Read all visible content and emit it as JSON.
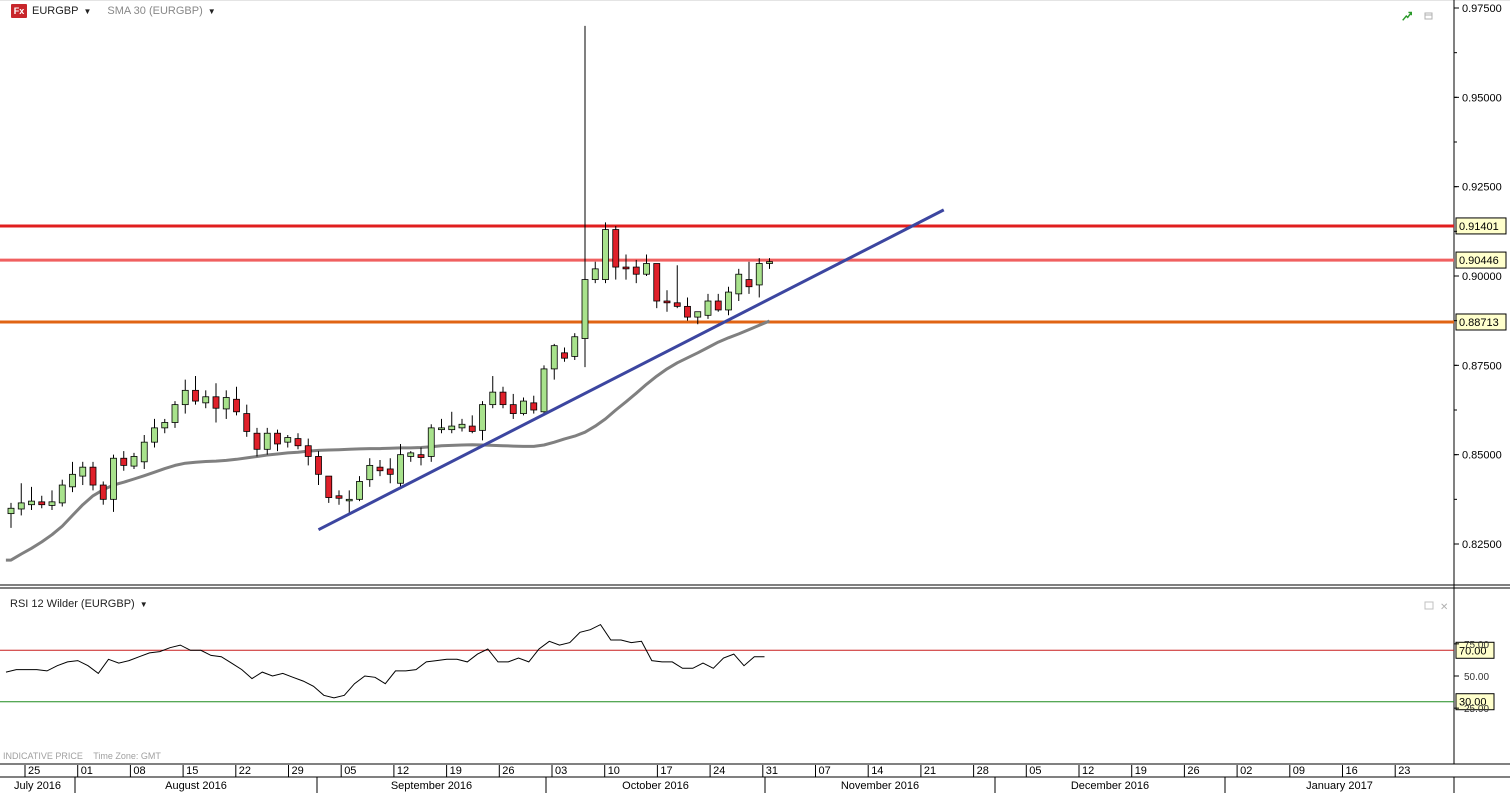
{
  "header": {
    "app_icon": "fx-logo-icon",
    "app_icon_text": "Fx",
    "symbol": "EURGBP",
    "indicator": "SMA 30 (EURGBP)"
  },
  "rsi_panel": {
    "label": "RSI 12 Wilder (EURGBP)",
    "ticks": [
      "75.00",
      "50.00",
      "25.00"
    ],
    "levels": [
      {
        "label": "70.00",
        "value": 70,
        "color": "#c81e1e"
      },
      {
        "label": "30.00",
        "value": 30,
        "color": "#1e8c1e"
      }
    ]
  },
  "footer": {
    "indicative": "INDICATIVE PRICE",
    "timezone": "Time Zone: GMT"
  },
  "colors": {
    "up_candle": "#a8e28c",
    "down_candle": "#e0202a",
    "sma": "#808080",
    "trendline": "#3c46a0",
    "resistance_top": "#e01e1e",
    "resistance_mid": "#f06060",
    "support": "#e06414"
  },
  "chart_data": {
    "type": "candlestick",
    "symbol": "EURGBP",
    "ylim": [
      0.8125,
      0.975
    ],
    "y_ticks": [
      "0.97500",
      "0.95000",
      "0.92500",
      "0.90000",
      "0.87500",
      "0.85000",
      "0.82500"
    ],
    "week_labels": [
      "25",
      "01",
      "08",
      "15",
      "22",
      "29",
      "05",
      "12",
      "19",
      "26",
      "03",
      "10",
      "17",
      "24",
      "31",
      "07",
      "14",
      "21",
      "28",
      "05",
      "12",
      "19",
      "26",
      "02",
      "09",
      "16",
      "23"
    ],
    "month_labels": [
      "July 2016",
      "August 2016",
      "September 2016",
      "October 2016",
      "November 2016",
      "December 2016",
      "January 2017"
    ],
    "horizontal_levels": [
      {
        "label": "0.91401",
        "value": 0.91401,
        "color": "#e01e1e"
      },
      {
        "label": "0.90446",
        "value": 0.90446,
        "color": "#f06060"
      },
      {
        "label": "0.88713",
        "value": 0.88713,
        "color": "#e06414"
      }
    ],
    "candles": [
      {
        "o": 0.8335,
        "h": 0.8365,
        "l": 0.8295,
        "c": 0.835
      },
      {
        "o": 0.8348,
        "h": 0.842,
        "l": 0.833,
        "c": 0.8365
      },
      {
        "o": 0.836,
        "h": 0.841,
        "l": 0.8345,
        "c": 0.837
      },
      {
        "o": 0.8368,
        "h": 0.8385,
        "l": 0.835,
        "c": 0.836
      },
      {
        "o": 0.8358,
        "h": 0.84,
        "l": 0.8345,
        "c": 0.8368
      },
      {
        "o": 0.8365,
        "h": 0.843,
        "l": 0.8355,
        "c": 0.8415
      },
      {
        "o": 0.841,
        "h": 0.848,
        "l": 0.8395,
        "c": 0.8445
      },
      {
        "o": 0.844,
        "h": 0.848,
        "l": 0.8415,
        "c": 0.8465
      },
      {
        "o": 0.8465,
        "h": 0.848,
        "l": 0.84,
        "c": 0.8415
      },
      {
        "o": 0.8415,
        "h": 0.8425,
        "l": 0.836,
        "c": 0.8375
      },
      {
        "o": 0.8375,
        "h": 0.85,
        "l": 0.834,
        "c": 0.849
      },
      {
        "o": 0.849,
        "h": 0.851,
        "l": 0.8455,
        "c": 0.847
      },
      {
        "o": 0.8468,
        "h": 0.8505,
        "l": 0.846,
        "c": 0.8495
      },
      {
        "o": 0.848,
        "h": 0.8555,
        "l": 0.846,
        "c": 0.8535
      },
      {
        "o": 0.8535,
        "h": 0.86,
        "l": 0.852,
        "c": 0.8575
      },
      {
        "o": 0.8575,
        "h": 0.86,
        "l": 0.856,
        "c": 0.859
      },
      {
        "o": 0.859,
        "h": 0.865,
        "l": 0.8575,
        "c": 0.864
      },
      {
        "o": 0.864,
        "h": 0.871,
        "l": 0.8615,
        "c": 0.868
      },
      {
        "o": 0.868,
        "h": 0.872,
        "l": 0.864,
        "c": 0.865
      },
      {
        "o": 0.8645,
        "h": 0.868,
        "l": 0.863,
        "c": 0.8662
      },
      {
        "o": 0.8662,
        "h": 0.87,
        "l": 0.859,
        "c": 0.863
      },
      {
        "o": 0.8628,
        "h": 0.868,
        "l": 0.86,
        "c": 0.866
      },
      {
        "o": 0.8655,
        "h": 0.869,
        "l": 0.861,
        "c": 0.862
      },
      {
        "o": 0.8615,
        "h": 0.864,
        "l": 0.855,
        "c": 0.8565
      },
      {
        "o": 0.856,
        "h": 0.8575,
        "l": 0.8495,
        "c": 0.8515
      },
      {
        "o": 0.8515,
        "h": 0.8575,
        "l": 0.85,
        "c": 0.856
      },
      {
        "o": 0.856,
        "h": 0.857,
        "l": 0.851,
        "c": 0.853
      },
      {
        "o": 0.8535,
        "h": 0.8555,
        "l": 0.852,
        "c": 0.8548
      },
      {
        "o": 0.8545,
        "h": 0.856,
        "l": 0.8515,
        "c": 0.8525
      },
      {
        "o": 0.8525,
        "h": 0.8545,
        "l": 0.847,
        "c": 0.8495
      },
      {
        "o": 0.8495,
        "h": 0.851,
        "l": 0.8415,
        "c": 0.8445
      },
      {
        "o": 0.844,
        "h": 0.844,
        "l": 0.8365,
        "c": 0.838
      },
      {
        "o": 0.8385,
        "h": 0.84,
        "l": 0.836,
        "c": 0.8378
      },
      {
        "o": 0.8375,
        "h": 0.84,
        "l": 0.8335,
        "c": 0.8375
      },
      {
        "o": 0.8375,
        "h": 0.844,
        "l": 0.837,
        "c": 0.8425
      },
      {
        "o": 0.843,
        "h": 0.849,
        "l": 0.841,
        "c": 0.847
      },
      {
        "o": 0.8465,
        "h": 0.8485,
        "l": 0.844,
        "c": 0.8455
      },
      {
        "o": 0.846,
        "h": 0.849,
        "l": 0.842,
        "c": 0.8445
      },
      {
        "o": 0.842,
        "h": 0.853,
        "l": 0.841,
        "c": 0.85
      },
      {
        "o": 0.8495,
        "h": 0.851,
        "l": 0.848,
        "c": 0.8505
      },
      {
        "o": 0.85,
        "h": 0.852,
        "l": 0.847,
        "c": 0.8492
      },
      {
        "o": 0.8495,
        "h": 0.8585,
        "l": 0.848,
        "c": 0.8575
      },
      {
        "o": 0.857,
        "h": 0.86,
        "l": 0.856,
        "c": 0.8575
      },
      {
        "o": 0.857,
        "h": 0.862,
        "l": 0.856,
        "c": 0.858
      },
      {
        "o": 0.8575,
        "h": 0.86,
        "l": 0.8565,
        "c": 0.8585
      },
      {
        "o": 0.858,
        "h": 0.861,
        "l": 0.856,
        "c": 0.8565
      },
      {
        "o": 0.8568,
        "h": 0.865,
        "l": 0.854,
        "c": 0.864
      },
      {
        "o": 0.864,
        "h": 0.872,
        "l": 0.863,
        "c": 0.8675
      },
      {
        "o": 0.8675,
        "h": 0.869,
        "l": 0.863,
        "c": 0.864
      },
      {
        "o": 0.864,
        "h": 0.867,
        "l": 0.86,
        "c": 0.8615
      },
      {
        "o": 0.8615,
        "h": 0.866,
        "l": 0.861,
        "c": 0.865
      },
      {
        "o": 0.8645,
        "h": 0.8665,
        "l": 0.8615,
        "c": 0.8625
      },
      {
        "o": 0.862,
        "h": 0.875,
        "l": 0.861,
        "c": 0.874
      },
      {
        "o": 0.874,
        "h": 0.881,
        "l": 0.871,
        "c": 0.8805
      },
      {
        "o": 0.8785,
        "h": 0.88,
        "l": 0.876,
        "c": 0.877
      },
      {
        "o": 0.8775,
        "h": 0.884,
        "l": 0.8765,
        "c": 0.883
      },
      {
        "o": 0.8825,
        "h": 0.97,
        "l": 0.8745,
        "c": 0.899
      },
      {
        "o": 0.899,
        "h": 0.904,
        "l": 0.898,
        "c": 0.902
      },
      {
        "o": 0.899,
        "h": 0.915,
        "l": 0.898,
        "c": 0.913
      },
      {
        "o": 0.913,
        "h": 0.914,
        "l": 0.899,
        "c": 0.9025
      },
      {
        "o": 0.9025,
        "h": 0.906,
        "l": 0.899,
        "c": 0.902
      },
      {
        "o": 0.9025,
        "h": 0.9045,
        "l": 0.898,
        "c": 0.9005
      },
      {
        "o": 0.9005,
        "h": 0.906,
        "l": 0.9,
        "c": 0.9035
      },
      {
        "o": 0.9035,
        "h": 0.9035,
        "l": 0.891,
        "c": 0.893
      },
      {
        "o": 0.893,
        "h": 0.896,
        "l": 0.89,
        "c": 0.8925
      },
      {
        "o": 0.8925,
        "h": 0.903,
        "l": 0.891,
        "c": 0.8915
      },
      {
        "o": 0.8915,
        "h": 0.894,
        "l": 0.8875,
        "c": 0.8885
      },
      {
        "o": 0.8885,
        "h": 0.89,
        "l": 0.8865,
        "c": 0.89
      },
      {
        "o": 0.889,
        "h": 0.895,
        "l": 0.888,
        "c": 0.893
      },
      {
        "o": 0.893,
        "h": 0.895,
        "l": 0.89,
        "c": 0.8905
      },
      {
        "o": 0.8905,
        "h": 0.897,
        "l": 0.889,
        "c": 0.8955
      },
      {
        "o": 0.895,
        "h": 0.902,
        "l": 0.893,
        "c": 0.9005
      },
      {
        "o": 0.899,
        "h": 0.904,
        "l": 0.895,
        "c": 0.897
      },
      {
        "o": 0.8975,
        "h": 0.905,
        "l": 0.894,
        "c": 0.9035
      },
      {
        "o": 0.9035,
        "h": 0.905,
        "l": 0.902,
        "c": 0.904
      }
    ],
    "sma_30": [
      0.8205,
      0.8222,
      0.8238,
      0.8256,
      0.8276,
      0.83,
      0.833,
      0.836,
      0.8385,
      0.8402,
      0.8415,
      0.8423,
      0.8432,
      0.8441,
      0.8451,
      0.8461,
      0.847,
      0.8476,
      0.8479,
      0.8481,
      0.8482,
      0.8484,
      0.8487,
      0.8491,
      0.8495,
      0.8499,
      0.8502,
      0.8505,
      0.8507,
      0.851,
      0.8512,
      0.8513,
      0.8514,
      0.8515,
      0.8516,
      0.8517,
      0.8517,
      0.8518,
      0.8519,
      0.8519,
      0.852,
      0.8522,
      0.8525,
      0.8526,
      0.8527,
      0.8528,
      0.8527,
      0.8526,
      0.8525,
      0.8524,
      0.8523,
      0.8523,
      0.8527,
      0.8535,
      0.8544,
      0.8552,
      0.8563,
      0.858,
      0.86,
      0.8625,
      0.8648,
      0.8672,
      0.8697,
      0.872,
      0.874,
      0.8757,
      0.8771,
      0.8785,
      0.88,
      0.8815,
      0.8827,
      0.8838,
      0.885,
      0.8862,
      0.8874
    ],
    "trendline": [
      {
        "i": 30,
        "v": 0.829
      },
      {
        "i": 91,
        "v": 0.9185
      }
    ],
    "rsi": [
      53,
      55,
      55,
      55,
      54,
      58,
      61,
      62,
      58,
      52,
      63,
      60,
      62,
      65,
      68,
      69,
      72,
      74,
      70,
      70,
      66,
      65,
      60,
      55,
      48,
      53,
      50,
      52,
      49,
      46,
      42,
      35,
      33,
      35,
      44,
      50,
      49,
      44,
      54,
      54,
      55,
      61,
      62,
      63,
      63,
      61,
      67,
      71,
      61,
      61,
      64,
      61,
      71,
      77,
      74,
      76,
      84,
      86,
      90,
      78,
      78,
      76,
      77,
      62,
      61,
      61,
      56,
      56,
      60,
      56,
      64,
      67,
      58,
      65,
      65
    ]
  }
}
